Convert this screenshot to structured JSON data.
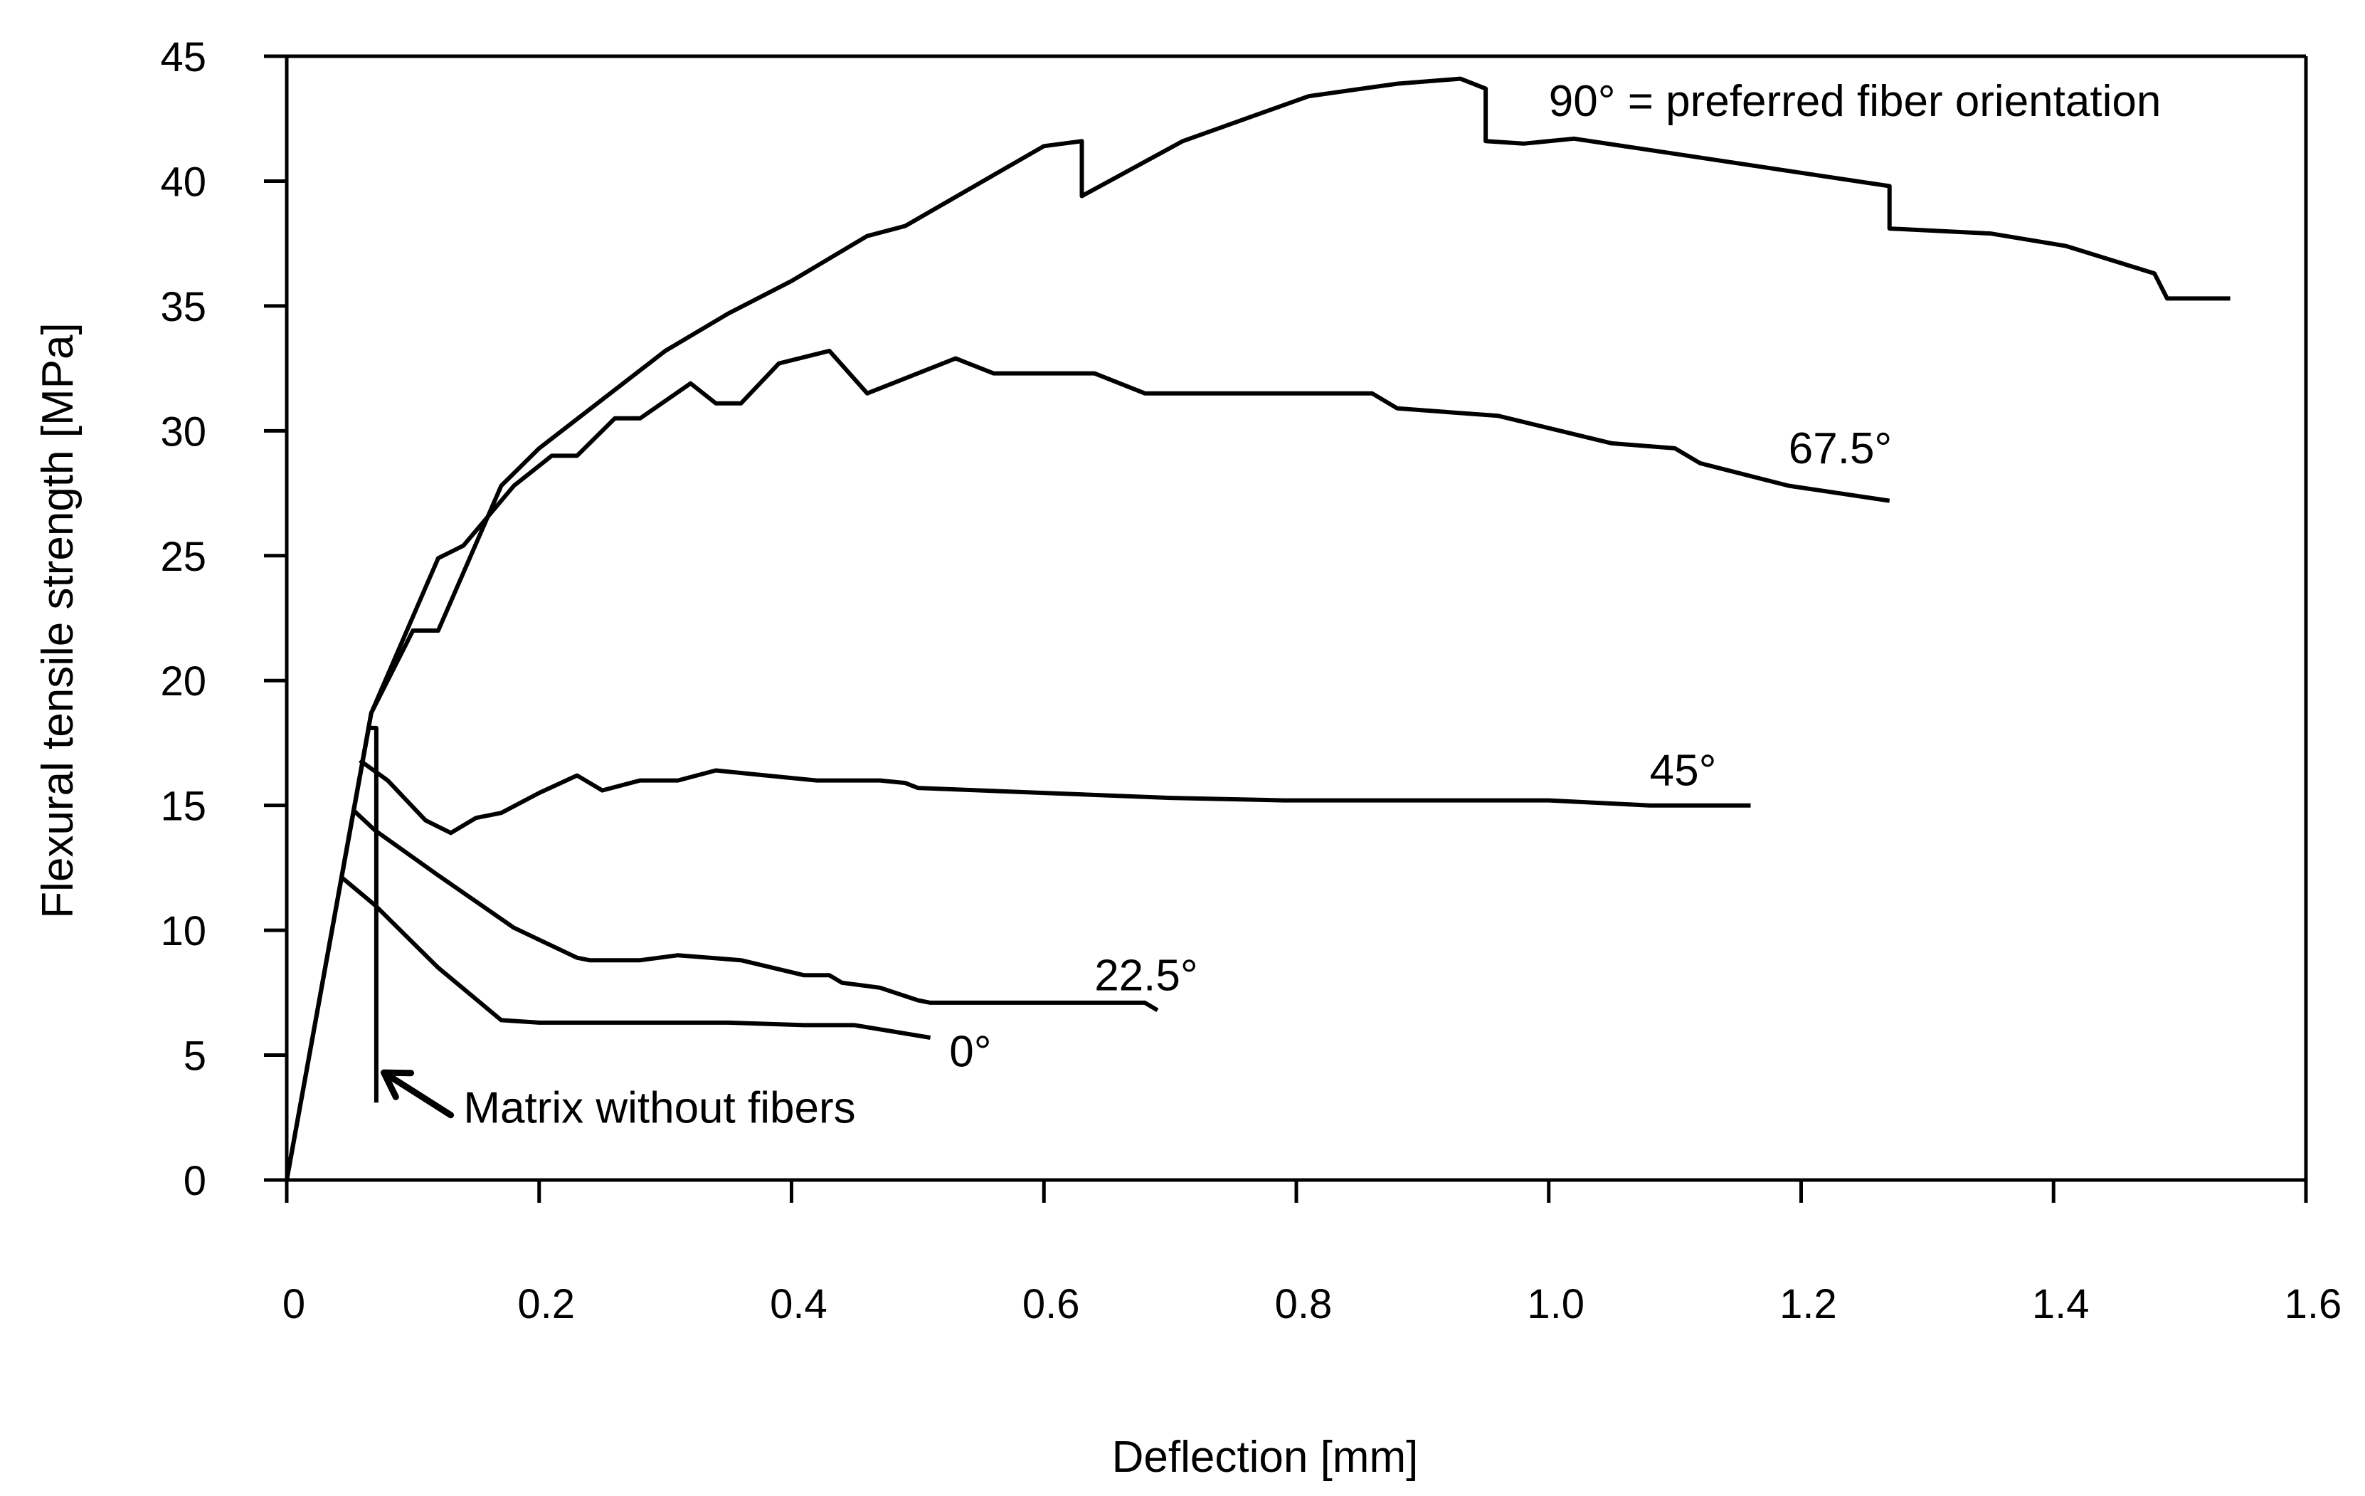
{
  "chart_data": {
    "type": "line",
    "title": "",
    "xlabel": "Deflection [mm]",
    "ylabel": "Flexural tensile strength [MPa]",
    "xlim": [
      0,
      1.6
    ],
    "ylim": [
      0,
      45
    ],
    "xticks": [
      0,
      0.2,
      0.4,
      0.6,
      0.8,
      1.0,
      1.2,
      1.4,
      1.6
    ],
    "xtick_labels": [
      "0",
      "0.2",
      "0.4",
      "0.6",
      "0.8",
      "1.0",
      "1.2",
      "1.4",
      "1.6"
    ],
    "yticks": [
      0,
      5,
      10,
      15,
      20,
      25,
      30,
      35,
      40,
      45
    ],
    "ytick_labels": [
      "0",
      "5",
      "10",
      "15",
      "20",
      "25",
      "30",
      "35",
      "40",
      "45"
    ],
    "grid": false,
    "color": "#000000",
    "series": [
      {
        "name": "90° = preferred fiber orientation",
        "label": "90° = preferred fiber orientation",
        "label_at": [
          1.0,
          42.6
        ],
        "label_anchor": "start",
        "x": [
          0,
          0.067,
          0.1,
          0.12,
          0.17,
          0.2,
          0.3,
          0.35,
          0.4,
          0.46,
          0.49,
          0.6,
          0.63,
          0.63,
          0.71,
          0.81,
          0.88,
          0.93,
          0.95,
          0.95,
          0.98,
          1.02,
          1.27,
          1.27,
          1.35,
          1.41,
          1.48,
          1.49,
          1.54
        ],
        "y": [
          0,
          18.7,
          22.0,
          22.0,
          27.8,
          29.3,
          33.2,
          34.7,
          36.0,
          37.8,
          38.2,
          41.4,
          41.6,
          39.4,
          41.6,
          43.4,
          43.9,
          44.1,
          43.7,
          41.6,
          41.5,
          41.7,
          39.8,
          38.1,
          37.9,
          37.4,
          36.3,
          35.3,
          35.3
        ]
      },
      {
        "name": "67.5°",
        "label": "67.5°",
        "label_at": [
          1.19,
          28.7
        ],
        "label_anchor": "start",
        "x": [
          0,
          0.067,
          0.12,
          0.14,
          0.18,
          0.21,
          0.23,
          0.26,
          0.28,
          0.32,
          0.34,
          0.36,
          0.39,
          0.43,
          0.46,
          0.53,
          0.56,
          0.64,
          0.68,
          0.79,
          0.86,
          0.88,
          0.96,
          1.05,
          1.1,
          1.12,
          1.19,
          1.27
        ],
        "y": [
          0,
          18.7,
          24.9,
          25.4,
          27.8,
          29.0,
          29.0,
          30.5,
          30.5,
          31.9,
          31.1,
          31.1,
          32.7,
          33.2,
          31.5,
          32.9,
          32.3,
          32.3,
          31.5,
          31.5,
          31.5,
          30.9,
          30.6,
          29.5,
          29.3,
          28.7,
          27.8,
          27.2
        ]
      },
      {
        "name": "45°",
        "label": "45°",
        "label_at": [
          1.08,
          15.8
        ],
        "label_anchor": "start",
        "x": [
          0.058,
          0.08,
          0.11,
          0.13,
          0.15,
          0.17,
          0.2,
          0.23,
          0.25,
          0.28,
          0.31,
          0.34,
          0.38,
          0.42,
          0.47,
          0.49,
          0.5,
          0.6,
          0.7,
          0.79,
          0.9,
          1.0,
          1.08,
          1.16
        ],
        "y": [
          16.8,
          16.0,
          14.4,
          13.9,
          14.5,
          14.7,
          15.5,
          16.2,
          15.6,
          16.0,
          16.0,
          16.4,
          16.2,
          16.0,
          16.0,
          15.9,
          15.7,
          15.5,
          15.3,
          15.2,
          15.2,
          15.2,
          15.0,
          15.0
        ]
      },
      {
        "name": "22.5°",
        "label": "22.5°",
        "label_at": [
          0.64,
          7.6
        ],
        "label_anchor": "start",
        "x": [
          0.053,
          0.07,
          0.12,
          0.18,
          0.23,
          0.24,
          0.28,
          0.31,
          0.36,
          0.41,
          0.43,
          0.44,
          0.47,
          0.5,
          0.51,
          0.6,
          0.68,
          0.69
        ],
        "y": [
          14.8,
          14.0,
          12.2,
          10.1,
          8.9,
          8.8,
          8.8,
          9.0,
          8.8,
          8.2,
          8.2,
          7.9,
          7.7,
          7.2,
          7.1,
          7.1,
          7.1,
          6.8
        ]
      },
      {
        "name": "0°",
        "label": "0°",
        "label_at": [
          0.525,
          4.55
        ],
        "label_anchor": "start",
        "x": [
          0.044,
          0.07,
          0.12,
          0.17,
          0.2,
          0.25,
          0.3,
          0.35,
          0.41,
          0.45,
          0.51
        ],
        "y": [
          12.1,
          11.0,
          8.5,
          6.4,
          6.3,
          6.3,
          6.3,
          6.3,
          6.2,
          6.2,
          5.7
        ]
      },
      {
        "name": "Matrix without fibers",
        "label": "Matrix without fibers",
        "label_at": [
          0.14,
          2.3
        ],
        "label_anchor": "start",
        "x": [
          0,
          0.065,
          0.071,
          0.071
        ],
        "y": [
          0,
          18.1,
          18.1,
          3.1
        ]
      }
    ],
    "annotations": [
      {
        "type": "arrow",
        "from": [
          0.13,
          2.6
        ],
        "to": [
          0.077,
          4.3
        ]
      }
    ]
  }
}
